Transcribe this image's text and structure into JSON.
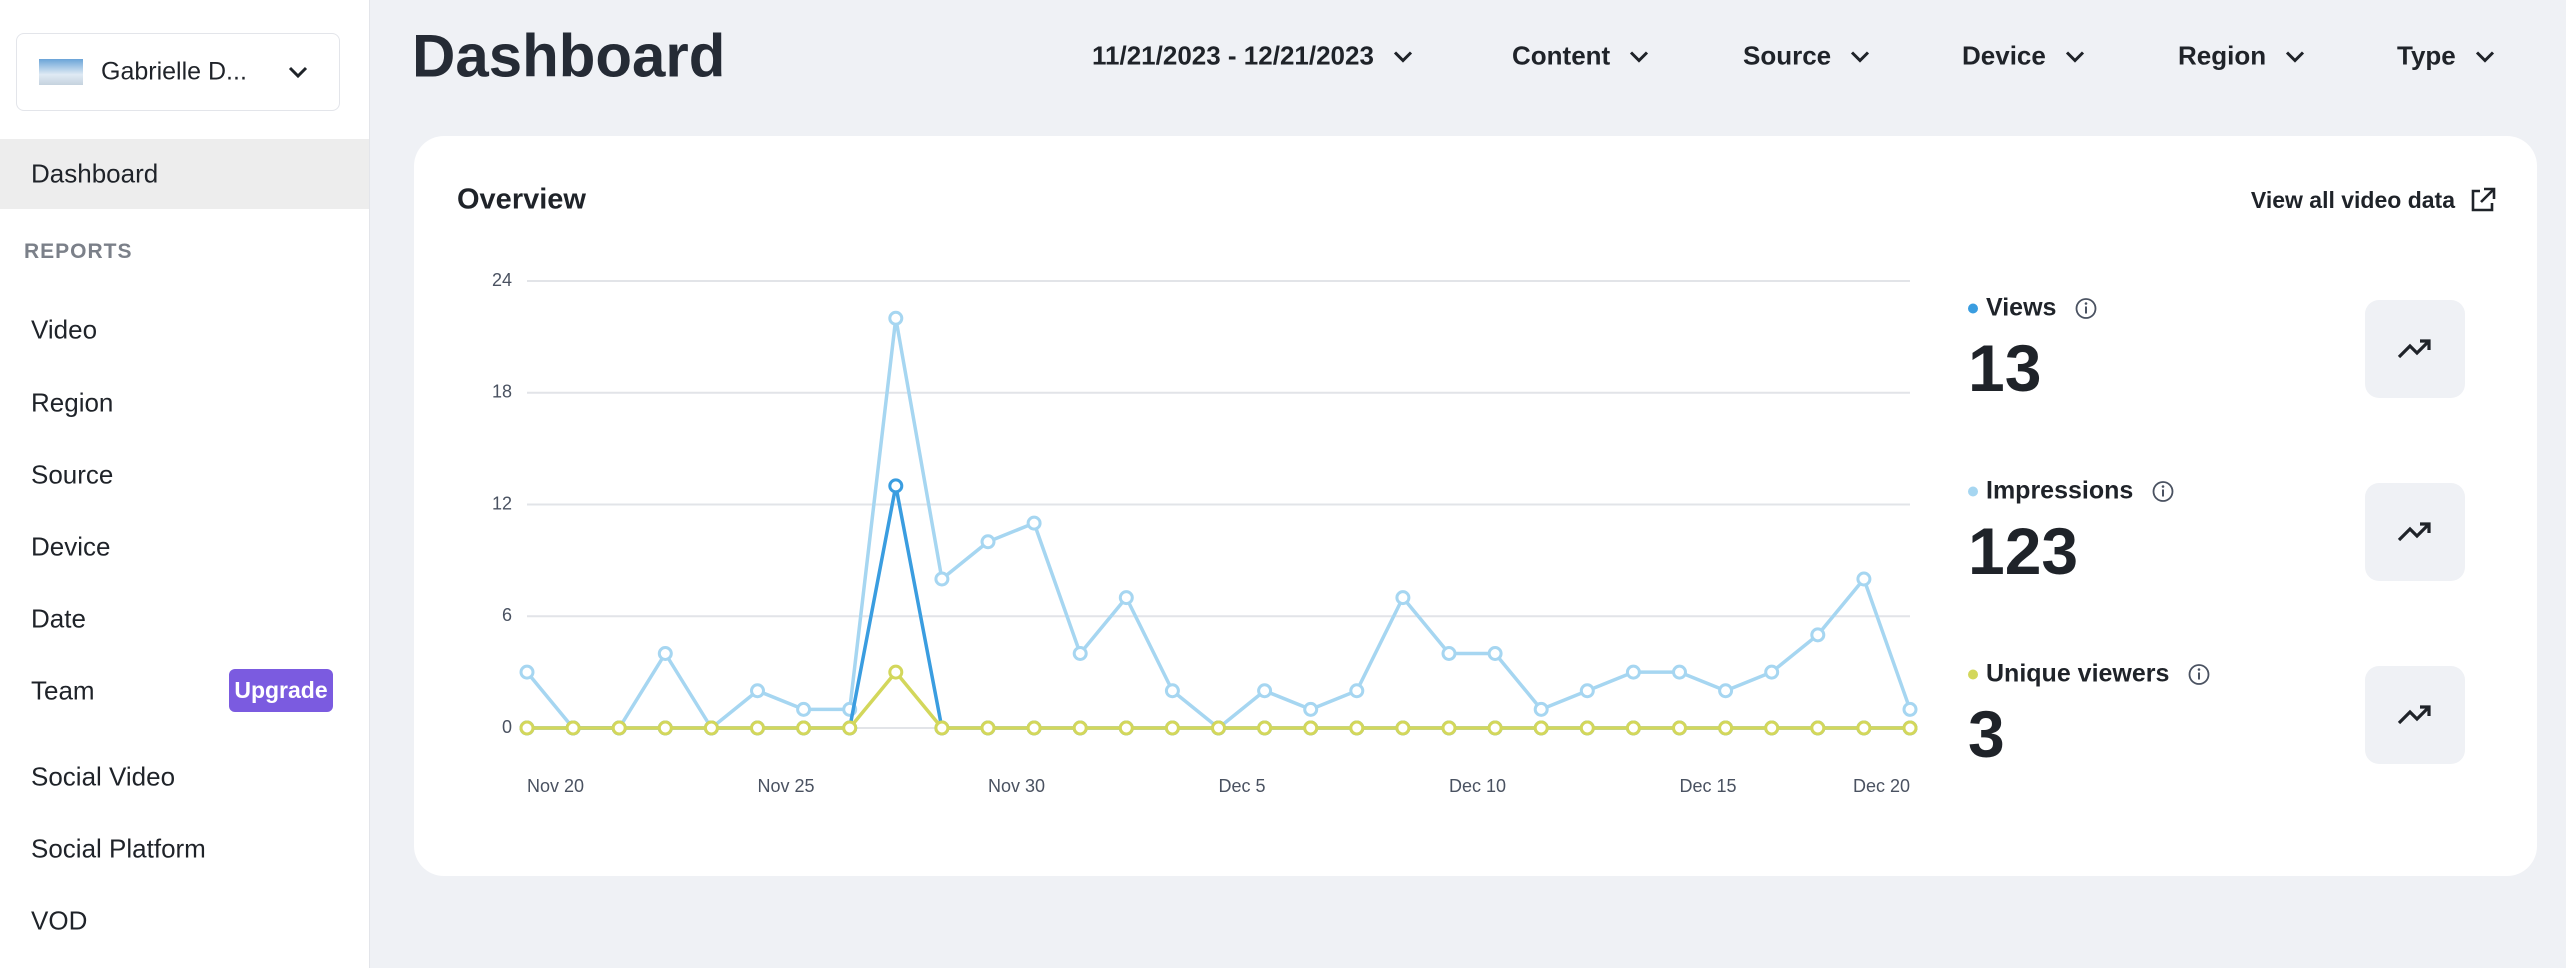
{
  "sidebar": {
    "account": "Gabrielle D...",
    "current": "Dashboard",
    "section": "REPORTS",
    "reports": [
      "Video",
      "Region",
      "Source",
      "Device",
      "Date",
      "Team"
    ],
    "badge": "Upgrade",
    "more": [
      "Social Video",
      "Social Platform",
      "VOD"
    ]
  },
  "header": {
    "title": "Dashboard",
    "filters": [
      "11/21/2023 - 12/21/2023",
      "Content",
      "Source",
      "Device",
      "Region",
      "Type"
    ]
  },
  "overview": {
    "title": "Overview",
    "link": "View all video data"
  },
  "chart_data": {
    "type": "line",
    "categories": [
      "Nov 20",
      null,
      null,
      null,
      null,
      "Nov 25",
      null,
      null,
      null,
      null,
      "Nov 30",
      null,
      null,
      null,
      null,
      "Dec 5",
      null,
      null,
      null,
      null,
      "Dec 10",
      null,
      null,
      null,
      null,
      "Dec 15",
      null,
      null,
      null,
      null,
      "Dec 20"
    ],
    "series": [
      {
        "name": "Impressions",
        "color": "#a6d6f1",
        "total": 123,
        "values": [
          3,
          0,
          0,
          4,
          0,
          2,
          1,
          1,
          22,
          8,
          10,
          11,
          4,
          7,
          2,
          0,
          2,
          1,
          2,
          7,
          4,
          4,
          1,
          2,
          3,
          3,
          2,
          3,
          5,
          8,
          1
        ]
      },
      {
        "name": "Views",
        "color": "#3a9de0",
        "total": 13,
        "values": [
          0,
          0,
          0,
          0,
          0,
          0,
          0,
          0,
          13,
          0,
          0,
          0,
          0,
          0,
          0,
          0,
          0,
          0,
          0,
          0,
          0,
          0,
          0,
          0,
          0,
          0,
          0,
          0,
          0,
          0,
          0
        ]
      },
      {
        "name": "Unique viewers",
        "color": "#d3d75b",
        "total": 3,
        "values": [
          0,
          0,
          0,
          0,
          0,
          0,
          0,
          0,
          3,
          0,
          0,
          0,
          0,
          0,
          0,
          0,
          0,
          0,
          0,
          0,
          0,
          0,
          0,
          0,
          0,
          0,
          0,
          0,
          0,
          0,
          0
        ]
      }
    ],
    "summary_order": [
      1,
      0,
      2
    ],
    "ylim": [
      0,
      24
    ],
    "yticks": [
      0,
      6,
      12,
      18,
      24
    ],
    "grid": true
  }
}
